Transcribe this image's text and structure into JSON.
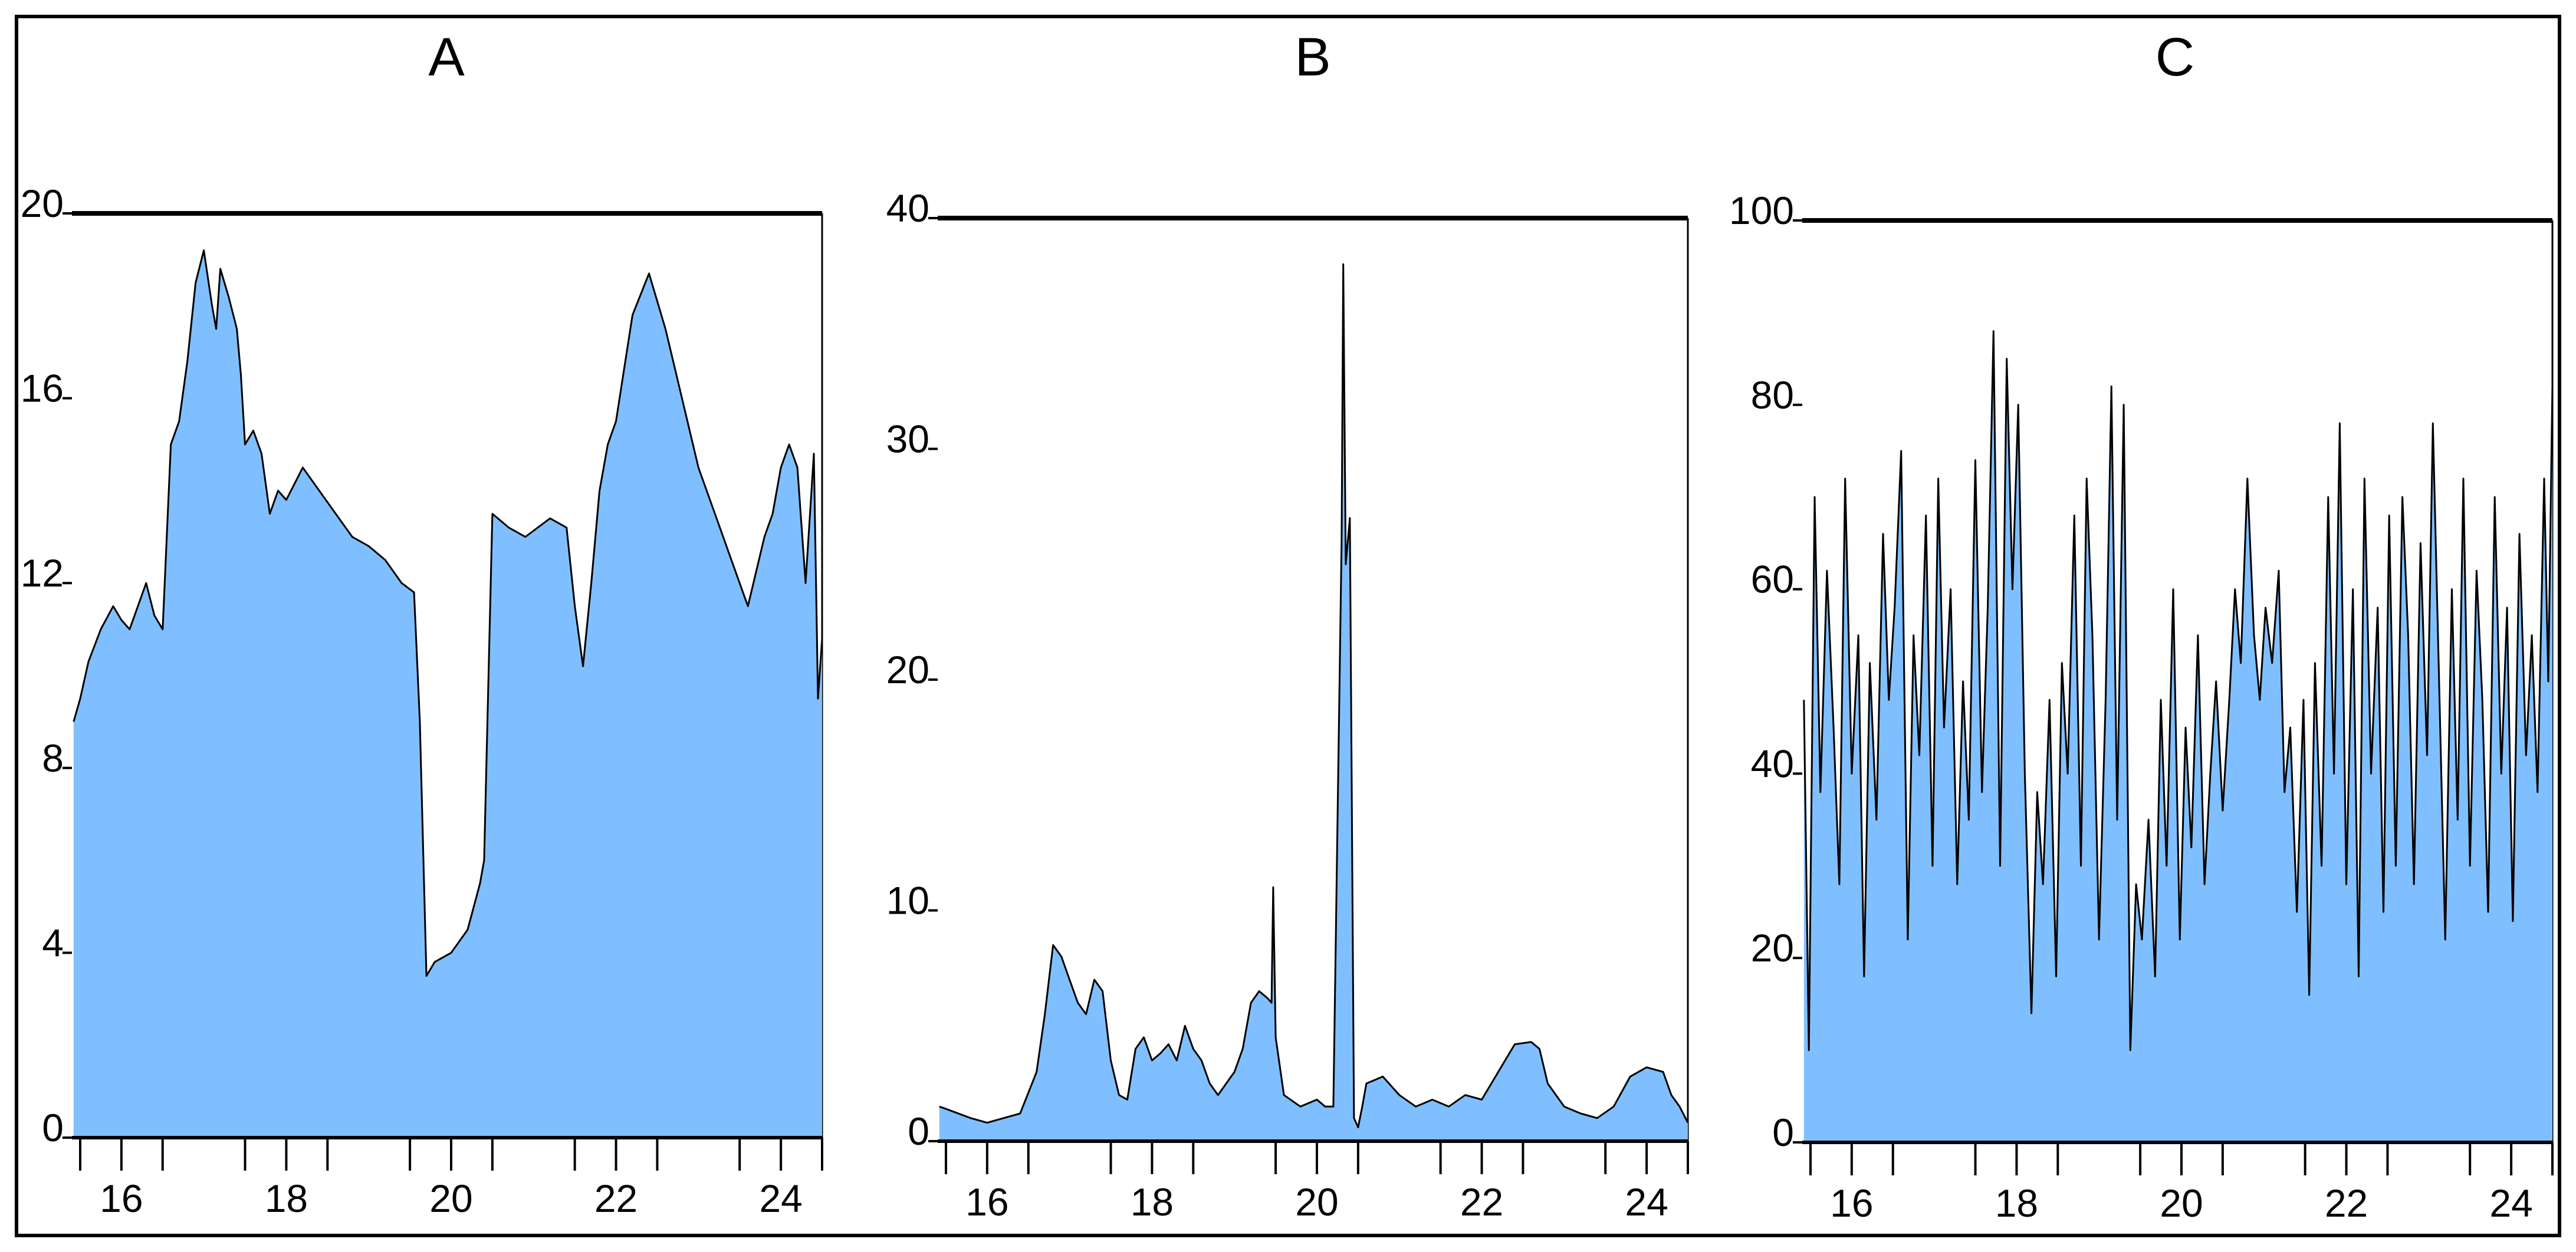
{
  "chart_data": [
    {
      "type": "area",
      "title": "A",
      "xlabel": "",
      "ylabel": "",
      "x_range": [
        15.4,
        24.5
      ],
      "ylim": [
        0,
        20
      ],
      "yticks": [
        0,
        4,
        8,
        12,
        16,
        20
      ],
      "xticks": [
        "16",
        "18",
        "20",
        "22",
        "24"
      ],
      "xtick_values": [
        16,
        18,
        20,
        22,
        24
      ],
      "minor_xticks": [
        15.5,
        16.5,
        17.5,
        18.5,
        19.5,
        20.5,
        21.5,
        22.5,
        23.5,
        24.5
      ],
      "color": "#80bfff",
      "x": [
        15.42,
        15.5,
        15.6,
        15.75,
        15.9,
        16.0,
        16.1,
        16.3,
        16.4,
        16.5,
        16.6,
        16.7,
        16.8,
        16.9,
        17.0,
        17.1,
        17.15,
        17.2,
        17.3,
        17.4,
        17.45,
        17.5,
        17.6,
        17.7,
        17.8,
        17.9,
        18.0,
        18.2,
        18.4,
        18.6,
        18.8,
        19.0,
        19.2,
        19.4,
        19.55,
        19.62,
        19.7,
        19.8,
        20.0,
        20.2,
        20.35,
        20.4,
        20.5,
        20.7,
        20.9,
        21.2,
        21.4,
        21.5,
        21.6,
        21.7,
        21.8,
        21.9,
        22.0,
        22.2,
        22.4,
        22.6,
        22.8,
        23.0,
        23.2,
        23.4,
        23.6,
        23.8,
        23.9,
        24.0,
        24.1,
        24.2,
        24.3,
        24.4,
        24.45,
        24.5
      ],
      "y": [
        9.0,
        9.5,
        10.3,
        11.0,
        11.5,
        11.2,
        11.0,
        12.0,
        11.3,
        11.0,
        15.0,
        15.5,
        16.8,
        18.5,
        19.2,
        18.0,
        17.5,
        18.8,
        18.2,
        17.5,
        16.5,
        15.0,
        15.3,
        14.8,
        13.5,
        14.0,
        13.8,
        14.5,
        14.0,
        13.5,
        13.0,
        12.8,
        12.5,
        12.0,
        11.8,
        9.0,
        3.5,
        3.8,
        4.0,
        4.5,
        5.5,
        6.0,
        13.5,
        13.2,
        13.0,
        13.4,
        13.2,
        11.5,
        10.2,
        12.0,
        14.0,
        15.0,
        15.5,
        17.8,
        18.7,
        17.5,
        16.0,
        14.5,
        13.5,
        12.5,
        11.5,
        13.0,
        13.5,
        14.5,
        15.0,
        14.5,
        12.0,
        14.8,
        9.5,
        10.8
      ]
    },
    {
      "type": "area",
      "title": "B",
      "xlabel": "",
      "ylabel": "",
      "x_range": [
        15.4,
        24.5
      ],
      "ylim": [
        0,
        40
      ],
      "yticks": [
        0,
        10,
        20,
        30,
        40
      ],
      "xticks": [
        "16",
        "18",
        "20",
        "22",
        "24"
      ],
      "xtick_values": [
        16,
        18,
        20,
        22,
        24
      ],
      "minor_xticks": [
        15.5,
        16.5,
        17.5,
        18.5,
        19.5,
        20.5,
        21.5,
        22.5,
        23.5,
        24.5
      ],
      "color": "#80bfff",
      "x": [
        15.42,
        15.5,
        15.8,
        16.0,
        16.2,
        16.4,
        16.6,
        16.7,
        16.8,
        16.9,
        17.0,
        17.1,
        17.2,
        17.3,
        17.4,
        17.5,
        17.6,
        17.7,
        17.8,
        17.9,
        18.0,
        18.1,
        18.2,
        18.3,
        18.4,
        18.5,
        18.6,
        18.7,
        18.8,
        18.9,
        19.0,
        19.1,
        19.2,
        19.3,
        19.4,
        19.45,
        19.47,
        19.5,
        19.6,
        19.8,
        20.0,
        20.1,
        20.2,
        20.3,
        20.32,
        20.35,
        20.4,
        20.45,
        20.5,
        20.55,
        20.6,
        20.8,
        21.0,
        21.2,
        21.4,
        21.6,
        21.8,
        22.0,
        22.2,
        22.4,
        22.6,
        22.7,
        22.8,
        22.9,
        23.0,
        23.2,
        23.4,
        23.6,
        23.8,
        24.0,
        24.2,
        24.3,
        24.4,
        24.5
      ],
      "y": [
        1.5,
        1.4,
        1.0,
        0.8,
        1.0,
        1.2,
        3.0,
        5.5,
        8.5,
        8.0,
        7.0,
        6.0,
        5.5,
        7.0,
        6.5,
        3.5,
        2.0,
        1.8,
        4.0,
        4.5,
        3.5,
        3.8,
        4.2,
        3.5,
        5.0,
        4.0,
        3.5,
        2.5,
        2.0,
        2.5,
        3.0,
        4.0,
        6.0,
        6.5,
        6.2,
        6.0,
        11.0,
        4.5,
        2.0,
        1.5,
        1.8,
        1.5,
        1.5,
        26.0,
        38.0,
        25.0,
        27.0,
        1.0,
        0.6,
        1.5,
        2.5,
        2.8,
        2.0,
        1.5,
        1.8,
        1.5,
        2.0,
        1.8,
        3.0,
        4.2,
        4.3,
        4.0,
        2.5,
        2.0,
        1.5,
        1.2,
        1.0,
        1.5,
        2.8,
        3.2,
        3.0,
        2.0,
        1.5,
        0.8
      ]
    },
    {
      "type": "area",
      "title": "C",
      "xlabel": "",
      "ylabel": "",
      "x_range": [
        15.4,
        24.5
      ],
      "ylim": [
        0,
        100
      ],
      "yticks": [
        0,
        20,
        40,
        60,
        80,
        100
      ],
      "xticks": [
        "16",
        "18",
        "20",
        "22",
        "24"
      ],
      "xtick_values": [
        16,
        18,
        20,
        22,
        24
      ],
      "minor_xticks": [
        15.5,
        16.5,
        17.5,
        18.5,
        19.5,
        20.5,
        21.5,
        22.5,
        23.5,
        24.5
      ],
      "color": "#80bfff",
      "x": [
        15.42,
        15.48,
        15.55,
        15.62,
        15.7,
        15.78,
        15.85,
        15.92,
        16.0,
        16.08,
        16.15,
        16.22,
        16.3,
        16.38,
        16.45,
        16.52,
        16.6,
        16.68,
        16.75,
        16.82,
        16.9,
        16.98,
        17.05,
        17.12,
        17.2,
        17.28,
        17.35,
        17.42,
        17.5,
        17.58,
        17.65,
        17.72,
        17.8,
        17.88,
        17.95,
        18.02,
        18.1,
        18.18,
        18.25,
        18.32,
        18.4,
        18.48,
        18.55,
        18.62,
        18.7,
        18.78,
        18.85,
        18.92,
        19.0,
        19.08,
        19.15,
        19.22,
        19.3,
        19.38,
        19.45,
        19.52,
        19.6,
        19.68,
        19.75,
        19.82,
        19.9,
        19.98,
        20.05,
        20.12,
        20.2,
        20.28,
        20.35,
        20.42,
        20.5,
        20.58,
        20.65,
        20.72,
        20.8,
        20.88,
        20.95,
        21.02,
        21.1,
        21.18,
        21.25,
        21.32,
        21.4,
        21.48,
        21.55,
        21.62,
        21.7,
        21.78,
        21.85,
        21.92,
        22.0,
        22.08,
        22.15,
        22.22,
        22.3,
        22.38,
        22.45,
        22.52,
        22.6,
        22.68,
        22.75,
        22.82,
        22.9,
        22.98,
        23.05,
        23.12,
        23.2,
        23.28,
        23.35,
        23.42,
        23.5,
        23.58,
        23.65,
        23.72,
        23.8,
        23.88,
        23.95,
        24.02,
        24.1,
        24.18,
        24.25,
        24.32,
        24.4,
        24.45,
        24.5
      ],
      "y": [
        48,
        10,
        70,
        38,
        62,
        45,
        28,
        72,
        40,
        55,
        18,
        52,
        35,
        66,
        48,
        58,
        75,
        22,
        55,
        42,
        68,
        30,
        72,
        45,
        60,
        28,
        50,
        35,
        74,
        38,
        58,
        88,
        30,
        85,
        60,
        80,
        40,
        14,
        38,
        28,
        48,
        18,
        52,
        40,
        68,
        30,
        72,
        55,
        22,
        48,
        82,
        35,
        80,
        10,
        28,
        22,
        35,
        18,
        48,
        30,
        60,
        22,
        45,
        32,
        55,
        28,
        40,
        50,
        36,
        48,
        60,
        52,
        72,
        55,
        48,
        58,
        52,
        62,
        38,
        45,
        25,
        48,
        16,
        52,
        30,
        70,
        40,
        78,
        28,
        60,
        18,
        72,
        40,
        58,
        25,
        68,
        30,
        70,
        55,
        28,
        65,
        42,
        78,
        52,
        22,
        60,
        35,
        72,
        30,
        62,
        48,
        25,
        70,
        40,
        58,
        24,
        66,
        42,
        55,
        38,
        72,
        50,
        82
      ]
    }
  ]
}
